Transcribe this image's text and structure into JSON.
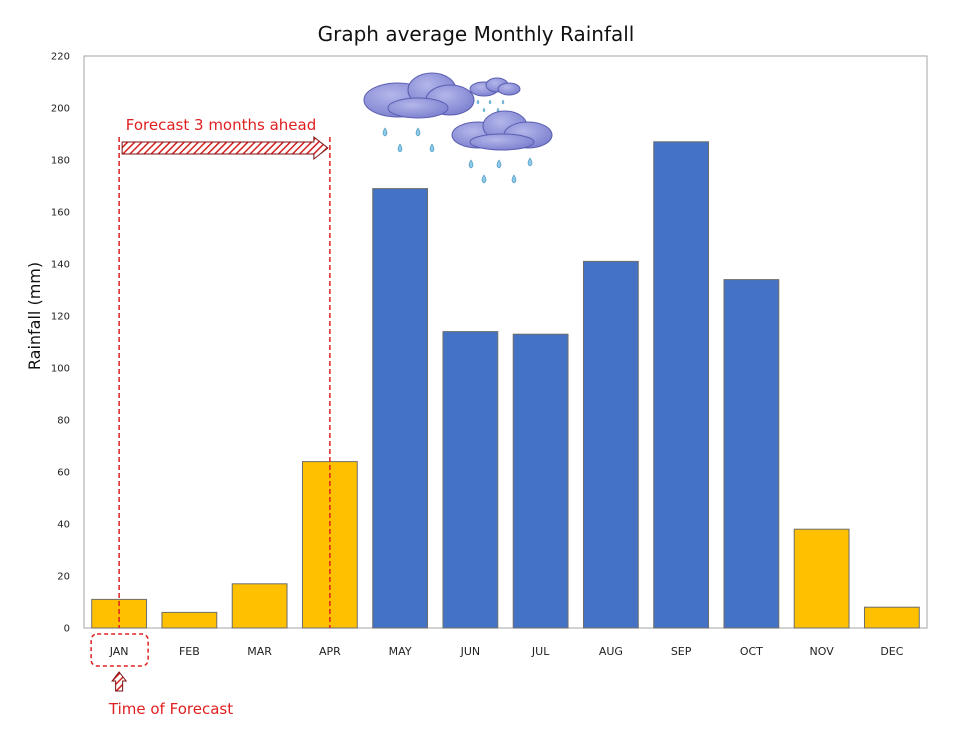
{
  "chart_data": {
    "type": "bar",
    "title": "Graph average Monthly Rainfall",
    "ylabel": "Rainfall (mm)",
    "xlabel": "",
    "ylim": [
      0,
      220
    ],
    "yticks": [
      0,
      20,
      40,
      60,
      80,
      100,
      120,
      140,
      160,
      180,
      200,
      220
    ],
    "categories": [
      "JAN",
      "FEB",
      "MAR",
      "APR",
      "MAY",
      "JUN",
      "JUL",
      "AUG",
      "SEP",
      "OCT",
      "NOV",
      "DEC"
    ],
    "values": [
      11,
      6,
      17,
      64,
      169,
      114,
      113,
      141,
      187,
      134,
      38,
      8
    ],
    "bar_colors": [
      "#ffc000",
      "#ffc000",
      "#ffc000",
      "#ffc000",
      "#4472c4",
      "#4472c4",
      "#4472c4",
      "#4472c4",
      "#4472c4",
      "#4472c4",
      "#ffc000",
      "#ffc000"
    ],
    "grid": false,
    "annotations": {
      "forecast_window": "Forecast 3 months ahead",
      "forecast_time": "Time of Forecast",
      "forecast_start": "JAN",
      "forecast_end": "APR"
    },
    "decorations": [
      "rain-cloud-icon",
      "rain-cloud-icon",
      "rain-cloud-icon"
    ]
  },
  "colors": {
    "dry_season": "#ffc000",
    "rainy_season": "#4472c4",
    "annotation": "#e02020"
  }
}
